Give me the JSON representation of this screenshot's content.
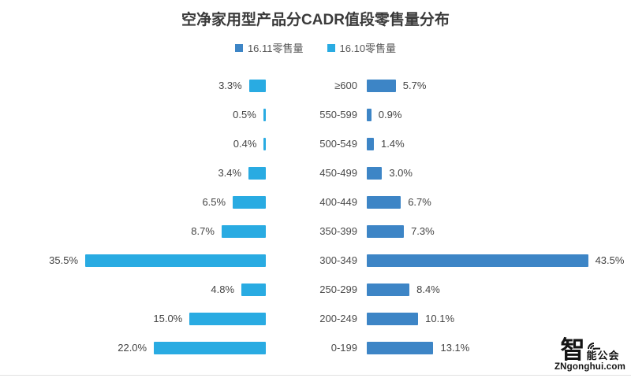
{
  "title": "空净家用型产品分CADR值段零售量分布",
  "watermark": {
    "logo_char": "智",
    "logo_text": "能公会",
    "site": "ZNgonghui.com"
  },
  "chart_data": {
    "type": "bar",
    "subtype": "tornado-horizontal",
    "title": "空净家用型产品分CADR值段零售量分布",
    "categories": [
      "≥600",
      "550-599",
      "500-549",
      "450-499",
      "400-449",
      "350-399",
      "300-349",
      "250-299",
      "200-249",
      "0-199"
    ],
    "series": [
      {
        "name": "16.11零售量",
        "side": "right",
        "color": "#3D85C6",
        "values": [
          5.7,
          0.9,
          1.4,
          3.0,
          6.7,
          7.3,
          43.5,
          8.4,
          10.1,
          13.1
        ]
      },
      {
        "name": "16.10零售量",
        "side": "left",
        "color": "#29ABE2",
        "values": [
          3.3,
          0.5,
          0.4,
          3.4,
          6.5,
          8.7,
          35.5,
          4.8,
          15.0,
          22.0
        ]
      }
    ],
    "value_suffix": "%",
    "value_decimals": 1,
    "xlim": [
      0,
      45
    ],
    "grid": false,
    "legend_position": "top-center",
    "data_labels": true
  }
}
